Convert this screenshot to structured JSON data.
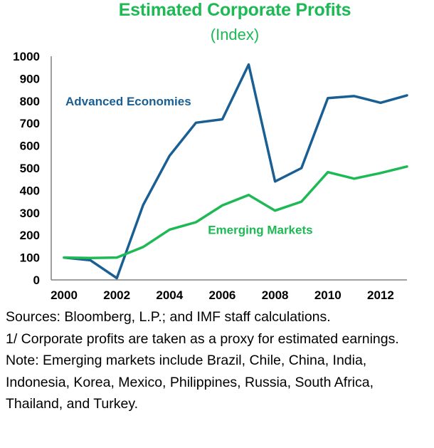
{
  "chart_data": {
    "type": "line",
    "title": "Estimated Corporate Profits",
    "subtitle": "(Index)",
    "x": [
      2000,
      2001,
      2002,
      2003,
      2004,
      2005,
      2006,
      2007,
      2008,
      2009,
      2010,
      2011,
      2012,
      2013
    ],
    "series": [
      {
        "name": "Advanced Economies",
        "color": "#1a5f94",
        "values": [
          100,
          88,
          8,
          335,
          555,
          703,
          718,
          963,
          440,
          500,
          813,
          822,
          792,
          825
        ]
      },
      {
        "name": "Emerging Markets",
        "color": "#1db954",
        "values": [
          100,
          98,
          100,
          147,
          225,
          258,
          333,
          380,
          310,
          350,
          482,
          453,
          478,
          507
        ]
      }
    ],
    "ylim": [
      0,
      1000
    ],
    "yticks": [
      "0",
      "100",
      "200",
      "300",
      "400",
      "500",
      "600",
      "700",
      "800",
      "900",
      "1000"
    ],
    "xticks": [
      "2000",
      "2002",
      "2004",
      "2006",
      "2008",
      "2010",
      "2012"
    ],
    "xlabel": "",
    "ylabel": "",
    "grid": false
  },
  "notes": {
    "sources": "Sources: Bloomberg, L.P.; and IMF staff calculations.",
    "footnote": "1/ Corporate profits are taken as a proxy for estimated earnings.",
    "note": "Note: Emerging markets include Brazil, Chile, China, India, Indonesia, Korea, Mexico, Philippines, Russia, South Africa, Thailand, and Turkey."
  }
}
